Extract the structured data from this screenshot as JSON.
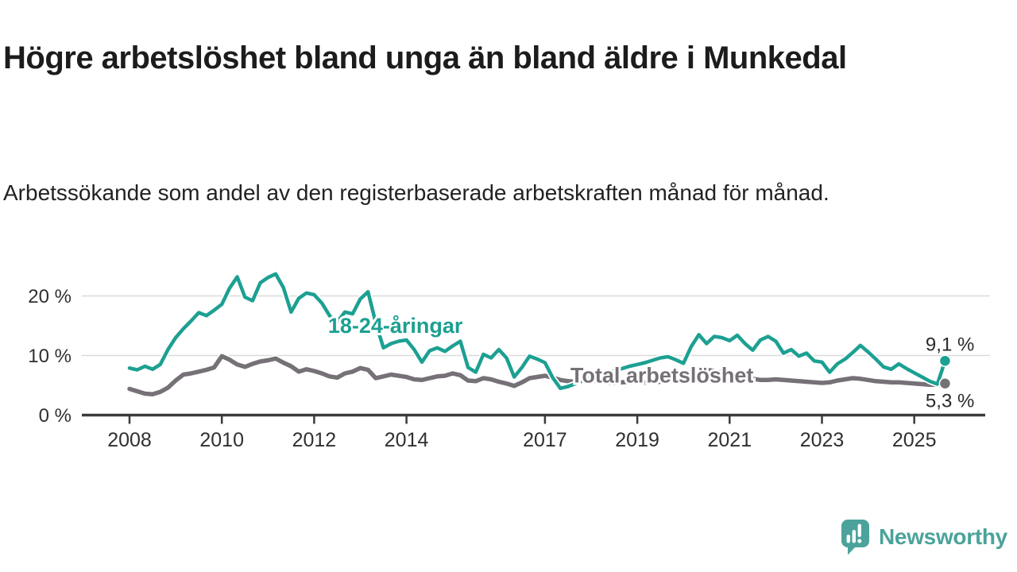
{
  "header": {
    "title": "Högre arbetslöshet bland unga än bland äldre i Munkedal",
    "subtitle": "Arbetssökande som andel av den registerbaserade arbetskraften månad för månad."
  },
  "branding": {
    "logo_text": "Newsworthy",
    "logo_color": "#4ba39b"
  },
  "chart_data": {
    "type": "line",
    "title": "Högre arbetslöshet bland unga än bland äldre i Munkedal",
    "subtitle": "Arbetssökande som andel av den registerbaserade arbetskraften månad för månad.",
    "grid": true,
    "x_axis": {
      "range": [
        2008.0,
        2025.75
      ],
      "tick_years": [
        2008,
        2010,
        2012,
        2014,
        2017,
        2019,
        2021,
        2023,
        2025
      ]
    },
    "y_axis": {
      "unit": "%",
      "range": [
        0,
        25
      ],
      "ticks": [
        {
          "value": 0,
          "label": "0 %",
          "grid": false
        },
        {
          "value": 10,
          "label": "10 %",
          "grid": true
        },
        {
          "value": 20,
          "label": "20 %",
          "grid": true
        }
      ]
    },
    "series": [
      {
        "id": "total-arbetsloshet",
        "name": "Total arbetslöshet",
        "color": "#767077",
        "width": 5.5,
        "start_year": 2008,
        "points_per_year": 6,
        "name_label": {
          "at_year": 2017.55,
          "at_value": 5.5
        },
        "end_value": 5.3,
        "end_label": "5,3 %",
        "end_label_below": true,
        "values": [
          4.4,
          4.0,
          3.6,
          3.5,
          3.9,
          4.6,
          5.8,
          6.8,
          7.0,
          7.3,
          7.6,
          8.0,
          9.9,
          9.3,
          8.5,
          8.1,
          8.6,
          9.0,
          9.2,
          9.5,
          8.8,
          8.2,
          7.3,
          7.7,
          7.4,
          7.0,
          6.5,
          6.3,
          7.0,
          7.3,
          7.9,
          7.6,
          6.2,
          6.5,
          6.8,
          6.6,
          6.4,
          6.0,
          5.9,
          6.2,
          6.5,
          6.6,
          7.0,
          6.7,
          5.8,
          5.7,
          6.2,
          6.0,
          5.6,
          5.3,
          4.9,
          5.5,
          6.2,
          6.4,
          6.6,
          6.3,
          5.9,
          5.7,
          5.6,
          5.7,
          5.8,
          5.7,
          5.5,
          5.4,
          5.5,
          5.6,
          5.5,
          5.4,
          5.5,
          5.6,
          5.7,
          5.8,
          6.2,
          7.2,
          7.8,
          7.6,
          7.4,
          7.2,
          7.0,
          6.8,
          6.5,
          6.1,
          5.9,
          5.9,
          6.0,
          5.9,
          5.8,
          5.7,
          5.6,
          5.5,
          5.4,
          5.5,
          5.8,
          6.0,
          6.2,
          6.1,
          5.9,
          5.7,
          5.6,
          5.5,
          5.5,
          5.4,
          5.3,
          5.2,
          5.1,
          5.1,
          5.3
        ]
      },
      {
        "id": "unga-18-24",
        "name": "18-24-åringar",
        "color": "#1ca092",
        "width": 4.5,
        "start_year": 2008,
        "points_per_year": 6,
        "name_label": {
          "at_year": 2012.3,
          "at_value": 13.8
        },
        "end_value": 9.1,
        "end_label": "9,1 %",
        "end_label_below": false,
        "values": [
          7.9,
          7.6,
          8.2,
          7.7,
          8.5,
          11.0,
          13.0,
          14.5,
          15.8,
          17.2,
          16.7,
          17.6,
          18.6,
          21.3,
          23.2,
          19.8,
          19.2,
          22.2,
          23.1,
          23.7,
          21.4,
          17.3,
          19.6,
          20.5,
          20.2,
          18.8,
          16.7,
          15.6,
          17.3,
          17.0,
          19.5,
          20.7,
          15.5,
          11.3,
          12.0,
          12.4,
          12.6,
          11.0,
          8.9,
          10.8,
          11.3,
          10.7,
          11.6,
          12.4,
          8.0,
          7.2,
          10.2,
          9.6,
          11.0,
          9.6,
          6.4,
          8.0,
          9.9,
          9.4,
          8.8,
          6.3,
          4.5,
          4.8,
          5.3,
          5.8,
          6.2,
          6.6,
          7.0,
          7.4,
          7.8,
          8.2,
          8.5,
          8.8,
          9.2,
          9.6,
          9.8,
          9.3,
          8.7,
          11.5,
          13.5,
          12.0,
          13.2,
          13.0,
          12.5,
          13.4,
          12.0,
          10.9,
          12.6,
          13.2,
          12.4,
          10.4,
          11.0,
          9.9,
          10.4,
          9.1,
          8.9,
          7.2,
          8.6,
          9.4,
          10.5,
          11.7,
          10.6,
          9.4,
          8.1,
          7.7,
          8.6,
          7.8,
          7.1,
          6.4,
          5.7,
          5.2,
          9.1
        ]
      }
    ],
    "legend_position": "labels-on-lines"
  }
}
